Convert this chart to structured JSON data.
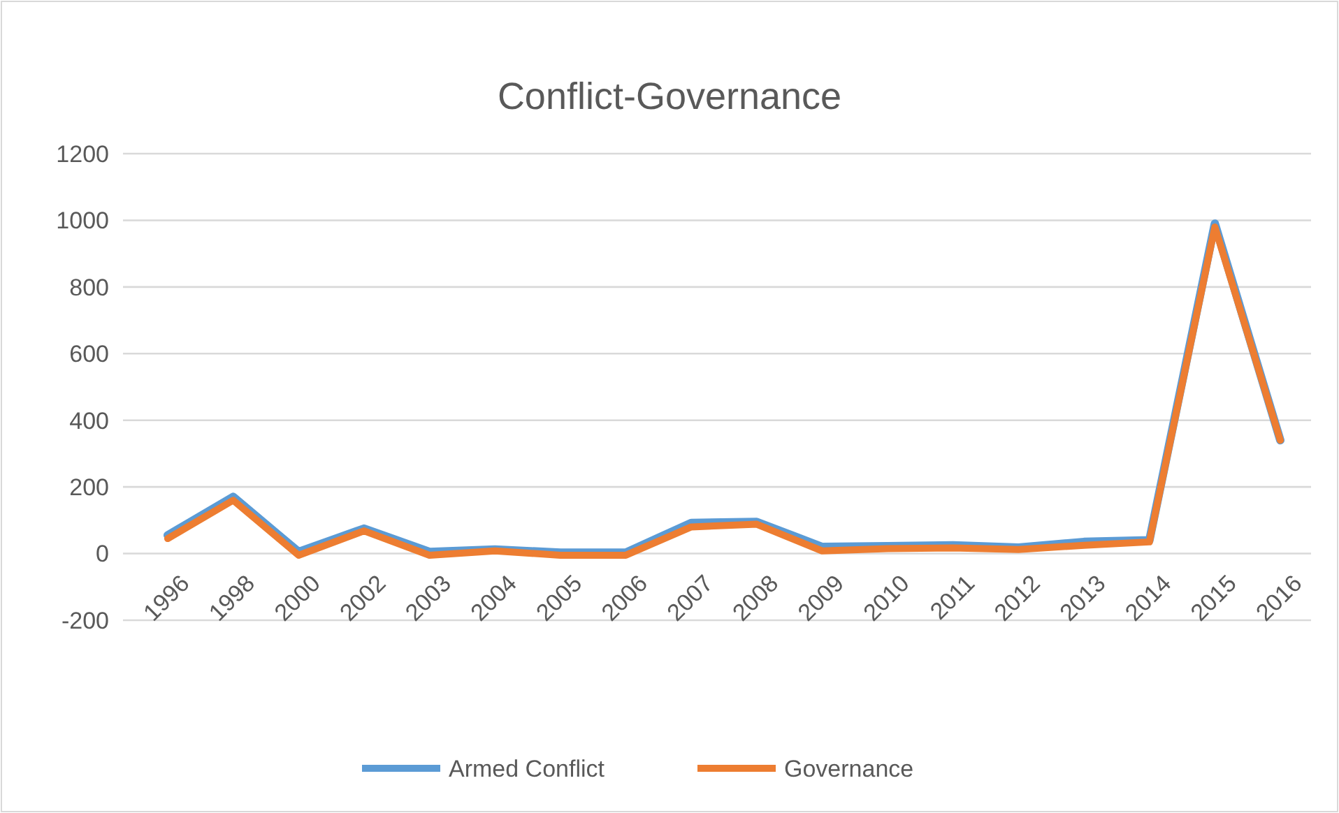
{
  "chart_data": {
    "type": "line",
    "title": "Conflict-Governance",
    "categories": [
      "1996",
      "1998",
      "2000",
      "2002",
      "2003",
      "2004",
      "2005",
      "2006",
      "2007",
      "2008",
      "2009",
      "2010",
      "2011",
      "2012",
      "2013",
      "2014",
      "2015",
      "2016"
    ],
    "series": [
      {
        "name": "Armed Conflict",
        "color": "#5b9bd5",
        "values": [
          55,
          170,
          5,
          75,
          5,
          12,
          3,
          3,
          92,
          95,
          20,
          22,
          25,
          18,
          35,
          40,
          990,
          340
        ]
      },
      {
        "name": "Governance",
        "color": "#ed7d31",
        "values": [
          45,
          160,
          -5,
          68,
          -5,
          8,
          -5,
          -5,
          80,
          88,
          8,
          15,
          17,
          12,
          25,
          35,
          980,
          340
        ]
      }
    ],
    "ylim": [
      -200,
      1200
    ],
    "yticks": [
      -200,
      0,
      200,
      400,
      600,
      800,
      1000,
      1200
    ],
    "grid": "y",
    "legend": "bottom",
    "marker": "none",
    "line_style": "solid"
  }
}
